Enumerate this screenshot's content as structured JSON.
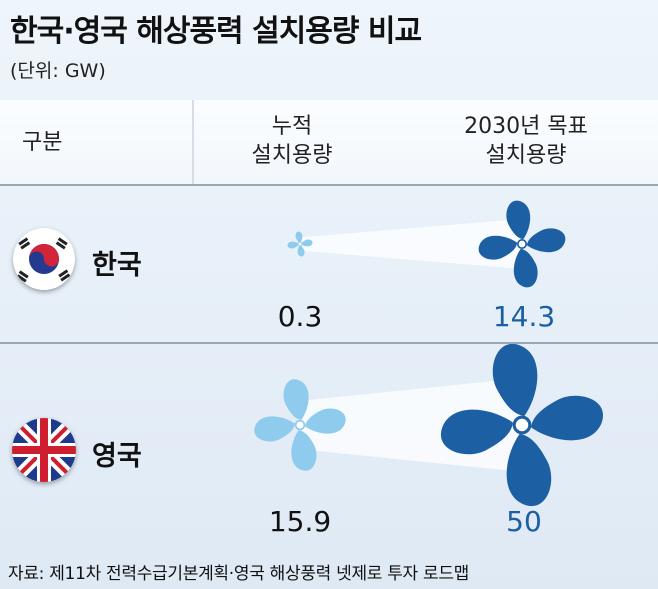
{
  "title": "한국·영국 해상풍력 설치용량 비교",
  "unit": "(단위: GW)",
  "header": {
    "col0": "구분",
    "col1_line1": "누적",
    "col1_line2": "설치용량",
    "col2_line1": "2030년 목표",
    "col2_line2": "설치용량"
  },
  "rows": [
    {
      "country": "한국",
      "current": "0.3",
      "target": "14.3",
      "flag_icon": "korea-flag-icon"
    },
    {
      "country": "영국",
      "current": "15.9",
      "target": "50",
      "flag_icon": "uk-flag-icon"
    }
  ],
  "source": "자료: 제11차 전력수급기본계획·영국 해상풍력 넷제로 투자 로드맵",
  "colors": {
    "current_fan": "#8fcbec",
    "target_fan": "#1d5fa3",
    "target_text": "#1a5fa3"
  },
  "chart_data": {
    "type": "table",
    "title": "한국·영국 해상풍력 설치용량 비교",
    "unit": "GW",
    "categories": [
      "한국",
      "영국"
    ],
    "series": [
      {
        "name": "누적 설치용량",
        "values": [
          0.3,
          15.9
        ]
      },
      {
        "name": "2030년 목표 설치용량",
        "values": [
          14.3,
          50
        ]
      }
    ]
  }
}
